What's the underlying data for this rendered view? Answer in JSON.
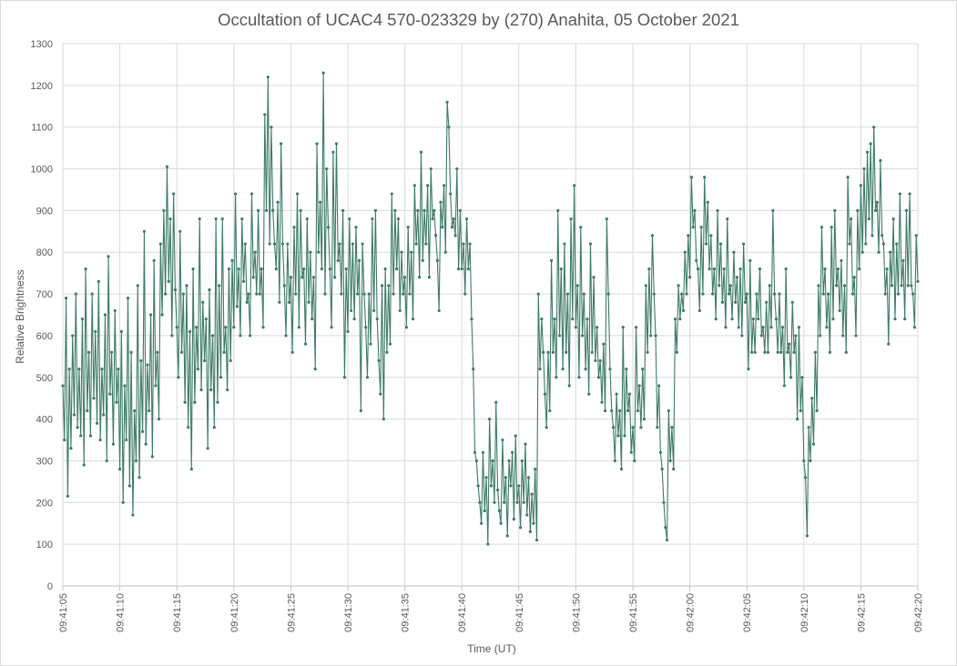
{
  "chart_data": {
    "type": "line",
    "title": "Occultation of UCAC4 570-023329 by (270) Anahita, 05 October 2021",
    "xlabel": "Time (UT)",
    "ylabel": "Relative Brightness",
    "ylim": [
      0,
      1300
    ],
    "y_ticks": [
      0,
      100,
      200,
      300,
      400,
      500,
      600,
      700,
      800,
      900,
      1000,
      1100,
      1200,
      1300
    ],
    "xlim": [
      "09:41:05",
      "09:42:20"
    ],
    "x_ticks": [
      "09:41:05",
      "09:41:10",
      "09:41:15",
      "09:41:20",
      "09:41:25",
      "09:41:30",
      "09:41:35",
      "09:41:40",
      "09:41:45",
      "09:41:50",
      "09:41:55",
      "09:42:00",
      "09:42:05",
      "09:42:10",
      "09:42:15",
      "09:42:20"
    ],
    "grid": true,
    "legend": "none",
    "series_color": "#3d7a66",
    "series": [
      {
        "x_start": "09:41:05",
        "x_end": "09:42:20",
        "values": [
          480,
          350,
          690,
          215,
          520,
          330,
          600,
          410,
          700,
          380,
          520,
          360,
          640,
          290,
          760,
          420,
          560,
          360,
          700,
          450,
          610,
          390,
          730,
          350,
          520,
          410,
          650,
          300,
          790,
          460,
          560,
          340,
          660,
          440,
          520,
          280,
          610,
          200,
          480,
          350,
          690,
          240,
          560,
          170,
          420,
          300,
          720,
          260,
          540,
          370,
          850,
          340,
          530,
          420,
          650,
          310,
          780,
          480,
          560,
          400,
          820,
          650,
          900,
          700,
          1005,
          730,
          880,
          600,
          940,
          710,
          620,
          500,
          850,
          560,
          700,
          440,
          720,
          380,
          610,
          280,
          760,
          440,
          620,
          520,
          880,
          470,
          680,
          540,
          640,
          330,
          710,
          470,
          600,
          380,
          880,
          440,
          720,
          500,
          880,
          560,
          620,
          470,
          760,
          540,
          780,
          620,
          940,
          670,
          760,
          600,
          880,
          730,
          820,
          680,
          700,
          600,
          940,
          740,
          800,
          700,
          900,
          700,
          760,
          620,
          1130,
          900,
          1220,
          820,
          1100,
          900,
          820,
          760,
          920,
          680,
          1060,
          820,
          720,
          600,
          820,
          680,
          740,
          560,
          860,
          700,
          940,
          620,
          900,
          740,
          760,
          580,
          880,
          680,
          800,
          640,
          740,
          520,
          1060,
          800,
          920,
          760,
          1230,
          700,
          1000,
          860,
          760,
          620,
          1040,
          740,
          1060,
          780,
          820,
          700,
          900,
          500,
          760,
          610,
          880,
          660,
          820,
          640,
          860,
          700,
          780,
          420,
          820,
          700,
          620,
          500,
          700,
          580,
          880,
          660,
          900,
          640,
          540,
          460,
          720,
          400,
          760,
          560,
          720,
          580,
          940,
          700,
          900,
          760,
          880,
          660,
          800,
          700,
          740,
          620,
          860,
          700,
          800,
          640,
          960,
          820,
          900,
          740,
          1040,
          780,
          900,
          820,
          960,
          740,
          1000,
          880,
          900,
          840,
          780,
          660,
          920,
          860,
          960,
          800,
          1160,
          1100,
          940,
          860,
          880,
          840,
          1000,
          760,
          900,
          760,
          820,
          700,
          880,
          760,
          820,
          640,
          520,
          320,
          300,
          240,
          200,
          150,
          320,
          180,
          260,
          100,
          400,
          240,
          300,
          200,
          440,
          230,
          180,
          150,
          350,
          200,
          260,
          120,
          300,
          240,
          320,
          160,
          360,
          200,
          240,
          140,
          300,
          200,
          340,
          170,
          260,
          130,
          220,
          150,
          280,
          110,
          700,
          520,
          640,
          560,
          460,
          380,
          560,
          420,
          780,
          560,
          640,
          500,
          900,
          600,
          760,
          520,
          820,
          560,
          700,
          480,
          880,
          640,
          960,
          620,
          720,
          500,
          860,
          600,
          700,
          520,
          640,
          460,
          820,
          560,
          740,
          540,
          620,
          500,
          540,
          440,
          580,
          420,
          880,
          700,
          520,
          420,
          380,
          300,
          460,
          360,
          420,
          280,
          620,
          360,
          520,
          420,
          460,
          320,
          380,
          300,
          620,
          420,
          480,
          380,
          520,
          400,
          720,
          560,
          760,
          600,
          840,
          700,
          600,
          380,
          480,
          320,
          280,
          200,
          140,
          110,
          420,
          300,
          380,
          280,
          640,
          560,
          720,
          640,
          700,
          660,
          800,
          700,
          840,
          740,
          980,
          860,
          900,
          780,
          760,
          660,
          860,
          700,
          980,
          820,
          920,
          760,
          840,
          700,
          760,
          640,
          900,
          720,
          820,
          680,
          760,
          620,
          880,
          700,
          720,
          640,
          800,
          680,
          740,
          620,
          760,
          600,
          820,
          680,
          700,
          520,
          780,
          560,
          640,
          560,
          700,
          640,
          760,
          600,
          620,
          560,
          680,
          560,
          720,
          620,
          900,
          700,
          640,
          560,
          700,
          560,
          620,
          480,
          760,
          560,
          580,
          500,
          680,
          560,
          600,
          400,
          620,
          420,
          500,
          300,
          260,
          120,
          380,
          300,
          450,
          340,
          560,
          420,
          720,
          600,
          860,
          700,
          760,
          620,
          700,
          560,
          860,
          640,
          900,
          720,
          760,
          660,
          780,
          600,
          720,
          560,
          980,
          820,
          880,
          700,
          740,
          600,
          900,
          760,
          960,
          800,
          1000,
          820,
          1040,
          880,
          1060,
          840,
          1100,
          900,
          920,
          800,
          1020,
          840,
          820,
          700,
          760,
          580,
          800,
          720,
          880,
          640,
          820,
          700,
          940,
          720,
          780,
          640,
          900,
          720,
          940,
          720,
          700,
          620,
          840,
          730
        ]
      }
    ]
  }
}
